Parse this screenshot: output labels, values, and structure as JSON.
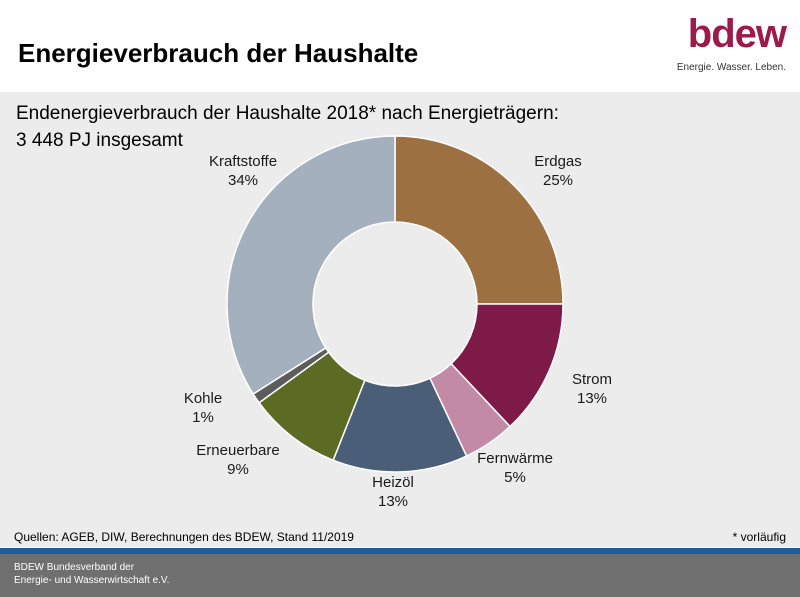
{
  "header": {
    "title": "Energieverbrauch der Haushalte",
    "logo_word": "bdew",
    "logo_tagline": "Energie. Wasser. Leben.",
    "logo_color": "#9c1b4a"
  },
  "chart_data": {
    "type": "pie",
    "variant": "donut",
    "title": "Endenergieverbrauch der Haushalte 2018* nach Energieträgern:",
    "subtitle": "3 448 PJ insgesamt",
    "unit": "%",
    "slices": [
      {
        "name": "Erdgas",
        "label": "25%",
        "value": 25,
        "color": "#9c7040"
      },
      {
        "name": "Strom",
        "label": "13%",
        "value": 13,
        "color": "#7d1a47"
      },
      {
        "name": "Fernwärme",
        "label": "5%",
        "value": 5,
        "color": "#c38aa6"
      },
      {
        "name": "Heizöl",
        "label": "13%",
        "value": 13,
        "color": "#4a5e78"
      },
      {
        "name": "Erneuerbare",
        "label": "9%",
        "value": 9,
        "color": "#5b6b23"
      },
      {
        "name": "Kohle",
        "label": "1%",
        "value": 1,
        "color": "#5c5c5c"
      },
      {
        "name": "Kraftstoffe",
        "label": "34%",
        "value": 34,
        "color": "#a5b0bf"
      }
    ]
  },
  "sources": "Quellen: AGEB, DIW, Berechnungen des BDEW, Stand 11/2019",
  "footnote": "* vorläufig",
  "footer": {
    "line1": "BDEW Bundesverband der",
    "line2": "Energie- und Wasserwirtschaft e.V.",
    "accent_color": "#1f5c9e"
  }
}
